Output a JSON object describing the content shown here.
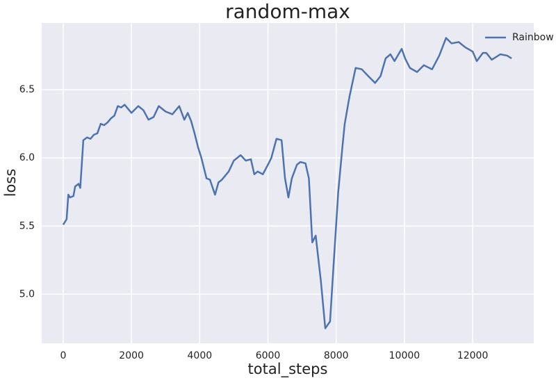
{
  "chart_data": {
    "type": "line",
    "title": "random-max",
    "xlabel": "total_steps",
    "ylabel": "loss",
    "x": [
      0,
      100,
      150,
      200,
      300,
      350,
      450,
      500,
      590,
      700,
      800,
      900,
      1000,
      1100,
      1200,
      1300,
      1400,
      1500,
      1600,
      1700,
      1800,
      2000,
      2200,
      2350,
      2500,
      2650,
      2800,
      3000,
      3200,
      3400,
      3550,
      3650,
      3750,
      3850,
      3950,
      4050,
      4200,
      4300,
      4450,
      4550,
      4650,
      4850,
      5000,
      5200,
      5350,
      5500,
      5600,
      5700,
      5850,
      6000,
      6100,
      6250,
      6400,
      6500,
      6600,
      6700,
      6850,
      6950,
      7100,
      7200,
      7300,
      7400,
      7550,
      7680,
      7820,
      7920,
      8060,
      8190,
      8250,
      8390,
      8570,
      8750,
      8940,
      9140,
      9300,
      9450,
      9590,
      9710,
      9920,
      10020,
      10160,
      10370,
      10570,
      10810,
      11020,
      11220,
      11380,
      11590,
      11790,
      12000,
      12120,
      12300,
      12400,
      12560,
      12810,
      13010,
      13140
    ],
    "series": [
      {
        "name": "Rainbow",
        "color": "#4c72b0",
        "values": [
          5.51,
          5.55,
          5.73,
          5.71,
          5.72,
          5.79,
          5.81,
          5.78,
          6.13,
          6.15,
          6.14,
          6.17,
          6.18,
          6.25,
          6.24,
          6.26,
          6.29,
          6.31,
          6.38,
          6.37,
          6.39,
          6.33,
          6.38,
          6.35,
          6.28,
          6.3,
          6.38,
          6.34,
          6.32,
          6.38,
          6.28,
          6.33,
          6.27,
          6.18,
          6.08,
          6.0,
          5.85,
          5.84,
          5.73,
          5.82,
          5.84,
          5.9,
          5.98,
          6.02,
          5.98,
          5.99,
          5.88,
          5.9,
          5.88,
          5.95,
          6.0,
          6.14,
          6.13,
          5.85,
          5.71,
          5.85,
          5.95,
          5.97,
          5.96,
          5.85,
          5.38,
          5.43,
          5.1,
          4.75,
          4.8,
          5.2,
          5.75,
          6.1,
          6.25,
          6.45,
          6.66,
          6.65,
          6.6,
          6.55,
          6.6,
          6.73,
          6.76,
          6.71,
          6.8,
          6.73,
          6.66,
          6.63,
          6.68,
          6.65,
          6.75,
          6.88,
          6.84,
          6.85,
          6.81,
          6.78,
          6.71,
          6.77,
          6.77,
          6.72,
          6.76,
          6.75,
          6.73
        ]
      }
    ],
    "xlim": [
      -630,
      13790
    ],
    "ylim": [
      4.64,
      6.99
    ],
    "xticks": [
      0,
      2000,
      4000,
      6000,
      8000,
      10000,
      12000
    ],
    "yticks": [
      {
        "value": 5.0,
        "label": "5.0"
      },
      5.5,
      {
        "value": 6.0,
        "label": "6.0"
      },
      6.5
    ],
    "grid": true,
    "legend": "upper right"
  }
}
